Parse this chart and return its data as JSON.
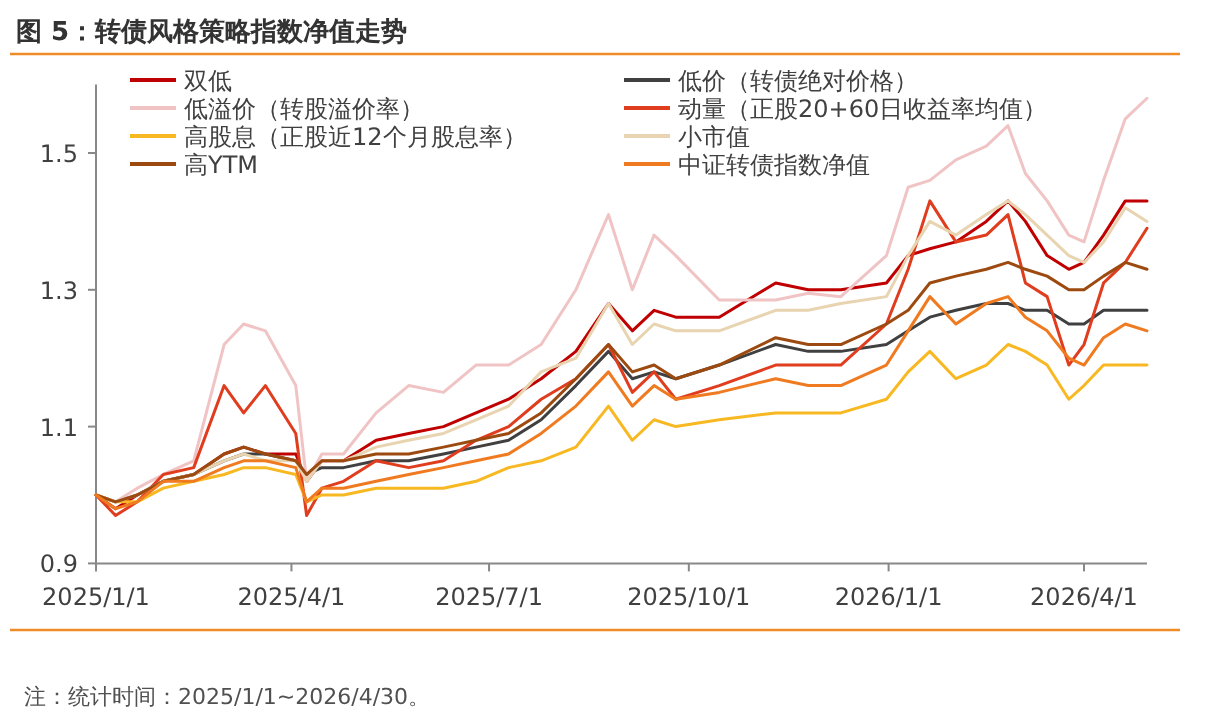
{
  "chart_data": {
    "type": "line",
    "title": "图 5：转债风格策略指数净值走势",
    "annotations": [
      "注：统计时间：2025/1/1~2026/4/30。"
    ],
    "x": [
      "2025-01-01",
      "2025-01-10",
      "2025-01-20",
      "2025-02-01",
      "2025-02-15",
      "2025-03-01",
      "2025-03-10",
      "2025-03-20",
      "2025-04-03",
      "2025-04-08",
      "2025-04-15",
      "2025-04-25",
      "2025-05-10",
      "2025-05-25",
      "2025-06-10",
      "2025-06-25",
      "2025-07-10",
      "2025-07-25",
      "2025-08-10",
      "2025-08-25",
      "2025-09-05",
      "2025-09-15",
      "2025-09-25",
      "2025-10-15",
      "2025-11-10",
      "2025-11-25",
      "2025-12-10",
      "2025-12-31",
      "2026-01-10",
      "2026-01-20",
      "2026-02-01",
      "2026-02-15",
      "2026-02-25",
      "2026-03-05",
      "2026-03-15",
      "2026-03-25",
      "2026-04-01",
      "2026-04-10",
      "2026-04-20",
      "2026-04-30"
    ],
    "series": [
      {
        "name": "双低",
        "color": "#c00000",
        "values": [
          1.0,
          0.98,
          1.0,
          1.02,
          1.03,
          1.06,
          1.07,
          1.06,
          1.06,
          1.02,
          1.05,
          1.05,
          1.08,
          1.09,
          1.1,
          1.12,
          1.14,
          1.17,
          1.21,
          1.28,
          1.24,
          1.27,
          1.26,
          1.26,
          1.31,
          1.3,
          1.3,
          1.31,
          1.35,
          1.36,
          1.37,
          1.4,
          1.43,
          1.4,
          1.35,
          1.33,
          1.34,
          1.38,
          1.43,
          1.43
        ]
      },
      {
        "name": "低价（转债绝对价格）",
        "color": "#404040",
        "values": [
          1.0,
          0.99,
          1.0,
          1.02,
          1.03,
          1.05,
          1.06,
          1.06,
          1.05,
          1.03,
          1.04,
          1.04,
          1.05,
          1.05,
          1.06,
          1.07,
          1.08,
          1.11,
          1.16,
          1.21,
          1.17,
          1.18,
          1.17,
          1.19,
          1.22,
          1.21,
          1.21,
          1.22,
          1.24,
          1.26,
          1.27,
          1.28,
          1.28,
          1.27,
          1.27,
          1.25,
          1.25,
          1.27,
          1.27,
          1.27
        ]
      },
      {
        "name": "低溢价（转股溢价率）",
        "color": "#f0c4c4",
        "values": [
          1.0,
          0.99,
          1.01,
          1.03,
          1.05,
          1.22,
          1.25,
          1.24,
          1.16,
          1.02,
          1.06,
          1.06,
          1.12,
          1.16,
          1.15,
          1.19,
          1.19,
          1.22,
          1.3,
          1.41,
          1.3,
          1.38,
          1.35,
          1.285,
          1.285,
          1.295,
          1.29,
          1.35,
          1.45,
          1.46,
          1.49,
          1.51,
          1.54,
          1.47,
          1.43,
          1.38,
          1.37,
          1.46,
          1.55,
          1.58
        ]
      },
      {
        "name": "动量（正股20+60日收益率均值）",
        "color": "#e03c1e",
        "values": [
          1.0,
          0.97,
          0.99,
          1.03,
          1.04,
          1.16,
          1.12,
          1.16,
          1.09,
          0.97,
          1.01,
          1.02,
          1.05,
          1.04,
          1.05,
          1.08,
          1.1,
          1.14,
          1.17,
          1.22,
          1.15,
          1.18,
          1.14,
          1.16,
          1.19,
          1.19,
          1.19,
          1.25,
          1.33,
          1.43,
          1.37,
          1.38,
          1.41,
          1.31,
          1.29,
          1.19,
          1.22,
          1.31,
          1.34,
          1.39
        ]
      },
      {
        "name": "高股息（正股近12个月股息率）",
        "color": "#f8b822",
        "values": [
          1.0,
          0.99,
          0.99,
          1.01,
          1.02,
          1.03,
          1.04,
          1.04,
          1.03,
          0.99,
          1.0,
          1.0,
          1.01,
          1.01,
          1.01,
          1.02,
          1.04,
          1.05,
          1.07,
          1.13,
          1.08,
          1.11,
          1.1,
          1.11,
          1.12,
          1.12,
          1.12,
          1.14,
          1.18,
          1.21,
          1.17,
          1.19,
          1.22,
          1.21,
          1.19,
          1.14,
          1.16,
          1.19,
          1.19,
          1.19
        ]
      },
      {
        "name": "小市值",
        "color": "#e8d4b0",
        "values": [
          1.0,
          0.99,
          1.0,
          1.02,
          1.03,
          1.05,
          1.06,
          1.05,
          1.05,
          1.02,
          1.05,
          1.05,
          1.07,
          1.08,
          1.09,
          1.11,
          1.13,
          1.18,
          1.2,
          1.28,
          1.22,
          1.25,
          1.24,
          1.24,
          1.27,
          1.27,
          1.28,
          1.29,
          1.35,
          1.4,
          1.38,
          1.41,
          1.43,
          1.41,
          1.38,
          1.35,
          1.34,
          1.37,
          1.42,
          1.4
        ]
      },
      {
        "name": "高YTM",
        "color": "#9c4a10",
        "values": [
          1.0,
          0.99,
          1.0,
          1.02,
          1.03,
          1.06,
          1.07,
          1.06,
          1.05,
          1.03,
          1.05,
          1.05,
          1.06,
          1.06,
          1.07,
          1.08,
          1.09,
          1.12,
          1.17,
          1.22,
          1.18,
          1.19,
          1.17,
          1.19,
          1.23,
          1.22,
          1.22,
          1.25,
          1.27,
          1.31,
          1.32,
          1.33,
          1.34,
          1.33,
          1.32,
          1.3,
          1.3,
          1.32,
          1.34,
          1.33
        ]
      },
      {
        "name": "中证转债指数净值",
        "color": "#f07a20",
        "values": [
          1.0,
          0.98,
          0.99,
          1.02,
          1.02,
          1.04,
          1.05,
          1.05,
          1.04,
          0.99,
          1.01,
          1.01,
          1.02,
          1.03,
          1.04,
          1.05,
          1.06,
          1.09,
          1.13,
          1.18,
          1.13,
          1.16,
          1.14,
          1.15,
          1.17,
          1.16,
          1.16,
          1.19,
          1.24,
          1.29,
          1.25,
          1.28,
          1.29,
          1.26,
          1.24,
          1.2,
          1.19,
          1.23,
          1.25,
          1.24
        ]
      }
    ],
    "xlim": [
      "2025-01-01",
      "2026-04-30"
    ],
    "xticks": [
      {
        "value": "2025-01-01",
        "label": "2025/1/1"
      },
      {
        "value": "2025-04-01",
        "label": "2025/4/1"
      },
      {
        "value": "2025-07-01",
        "label": "2025/7/1"
      },
      {
        "value": "2025-10-01",
        "label": "2025/10/1"
      },
      {
        "value": "2026-01-01",
        "label": "2026/1/1"
      },
      {
        "value": "2026-04-01",
        "label": "2026/4/1"
      }
    ],
    "ylim": [
      0.9,
      1.6
    ],
    "yticks": [
      0.9,
      1.1,
      1.3,
      1.5
    ],
    "grid": false,
    "legend": "top",
    "marker": "none",
    "line_style": "solid"
  }
}
